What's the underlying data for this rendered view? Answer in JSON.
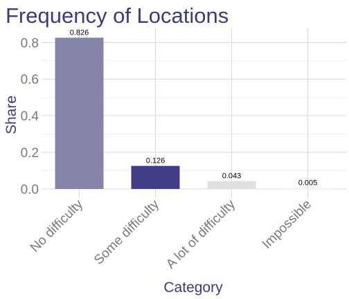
{
  "chart_data": {
    "type": "bar",
    "title": "Frequency of Locations",
    "xlabel": "Category",
    "ylabel": "Share",
    "categories": [
      "No difficulty",
      "Some difficulty",
      "A lot of difficulty",
      "Impossible"
    ],
    "values": [
      0.826,
      0.126,
      0.043,
      0.005
    ],
    "data_labels": [
      "0.826",
      "0.126",
      "0.043",
      "0.005"
    ],
    "ylim": [
      0,
      0.88
    ],
    "yticks": [
      0.0,
      0.2,
      0.4,
      0.6,
      0.8
    ],
    "ytick_labels": [
      "0.0",
      "0.2",
      "0.4",
      "0.6",
      "0.8"
    ],
    "grid": true,
    "legend": "none",
    "bar_colors": [
      "#8585aa",
      "#403d86",
      "#e0e0e0",
      "#f5f5f5"
    ],
    "colors": {
      "title": "#3d3a82",
      "axis_title": "#3d3a82",
      "tick_label": "#7a7a7a",
      "grid_major": "#d9d9d9",
      "grid_minor": "#ededed",
      "data_label": "#000000"
    }
  }
}
